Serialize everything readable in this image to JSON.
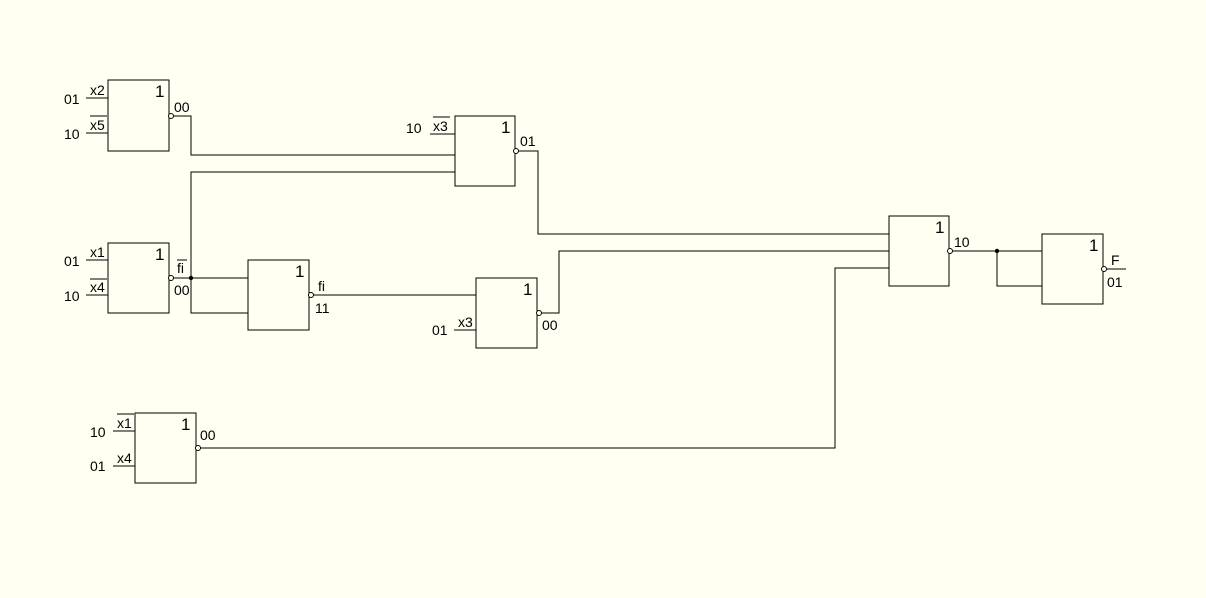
{
  "gates": [
    {
      "id": "g1",
      "symbol": "1",
      "inputs": [
        {
          "value": "01",
          "name": "x2",
          "inverted": false
        },
        {
          "value": "10",
          "name": "x5",
          "inverted": true
        }
      ],
      "output_value": "00"
    },
    {
      "id": "g2",
      "symbol": "1",
      "inputs": [
        {
          "value": "01",
          "name": "x1",
          "inverted": false
        },
        {
          "value": "10",
          "name": "x4",
          "inverted": true
        }
      ],
      "output_value": "00",
      "output_name": "fi",
      "output_name_inverted": true
    },
    {
      "id": "g3",
      "symbol": "1",
      "inputs": [
        {
          "value": "10",
          "name": "x1",
          "inverted": true
        },
        {
          "value": "01",
          "name": "x4",
          "inverted": false
        }
      ],
      "output_value": "00"
    },
    {
      "id": "g4",
      "symbol": "1",
      "inputs": [],
      "output_value": "11",
      "output_name": "fi",
      "output_name_inverted": false
    },
    {
      "id": "g5",
      "symbol": "1",
      "inputs": [
        {
          "value": "10",
          "name": "x3",
          "inverted": true
        }
      ],
      "output_value": "01"
    },
    {
      "id": "g6",
      "symbol": "1",
      "inputs": [
        {
          "value": "01",
          "name": "x3",
          "inverted": false
        }
      ],
      "output_value": "00"
    },
    {
      "id": "g7",
      "symbol": "1",
      "inputs": [],
      "output_value": "10"
    },
    {
      "id": "g8",
      "symbol": "1",
      "inputs": [],
      "output_value": "01",
      "output_name": "F",
      "output_name_inverted": false
    }
  ],
  "colors": {
    "background": "#fffff2",
    "stroke": "#000000"
  }
}
